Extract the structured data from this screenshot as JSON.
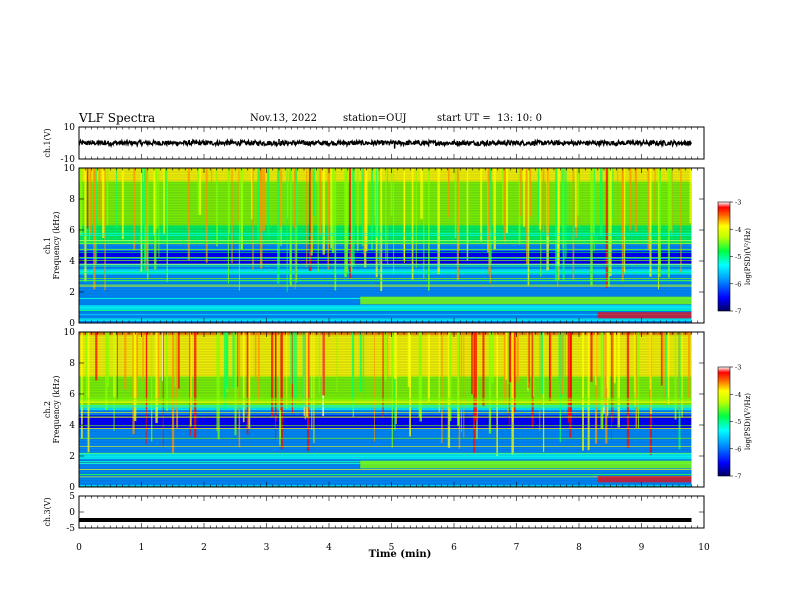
{
  "header": {
    "title": "VLF Spectra",
    "date": "Nov.13, 2022",
    "station": "station=OUJ",
    "start": "start UT =  13: 10: 0"
  },
  "chart_data": [
    {
      "type": "line",
      "name": "ch1-waveform",
      "ylabel": "ch.1(V)",
      "ylim": [
        -10,
        10
      ],
      "yticks": [
        "10",
        "-10"
      ],
      "x_range_min": [
        0,
        9.8
      ],
      "baseline": 0,
      "amplitude_typical": 1.5,
      "spikes": [
        {
          "x": 3.2,
          "y": 2.5
        },
        {
          "x": 5.05,
          "y": -3.5
        },
        {
          "x": 7.3,
          "y": 1.5
        }
      ]
    },
    {
      "type": "heatmap",
      "name": "ch1-spectrogram",
      "ylabel": "ch.1\nFrequency (kHz)",
      "ylim": [
        0,
        10
      ],
      "yticks": [
        "0",
        "2",
        "4",
        "6",
        "8",
        "10"
      ],
      "colorbar": {
        "label": "log(PSD)(V²/Hz)",
        "ticks": [
          "-3",
          "-4",
          "-5",
          "-6",
          "-7"
        ],
        "range": [
          -7,
          -3
        ]
      },
      "description_bands_kHz": {
        "strong_sferics_above": 5.5,
        "dark_gap": [
          3.8,
          4.6
        ],
        "line_at": [
          0.6,
          1.6
        ]
      }
    },
    {
      "type": "heatmap",
      "name": "ch2-spectrogram",
      "ylabel": "ch.2\nFrequency (kHz)",
      "ylim": [
        0,
        10
      ],
      "yticks": [
        "0",
        "2",
        "4",
        "6",
        "8",
        "10"
      ],
      "colorbar": {
        "label": "log(PSD)(V²/Hz)",
        "ticks": [
          "-3",
          "-4",
          "-5",
          "-6",
          "-7"
        ],
        "range": [
          -7,
          -3
        ]
      }
    },
    {
      "type": "line",
      "name": "ch3-waveform",
      "ylabel": "ch.3(V)",
      "ylim": [
        -5,
        5
      ],
      "yticks": [
        "5",
        "0",
        "-5"
      ],
      "x_range_min": [
        0,
        9.8
      ],
      "baseline": -2.5
    }
  ],
  "xaxis": {
    "label": "Time (min)",
    "ticks": [
      "0",
      "1",
      "2",
      "3",
      "4",
      "5",
      "6",
      "7",
      "8",
      "9",
      "10"
    ],
    "range": [
      0,
      10
    ]
  },
  "colors": {
    "ink": "#000000",
    "colormap": [
      "#000060",
      "#0000ff",
      "#0090ff",
      "#00ffff",
      "#00ff60",
      "#80ff00",
      "#ffff00",
      "#ff9000",
      "#ff0000",
      "#ffffff"
    ]
  }
}
